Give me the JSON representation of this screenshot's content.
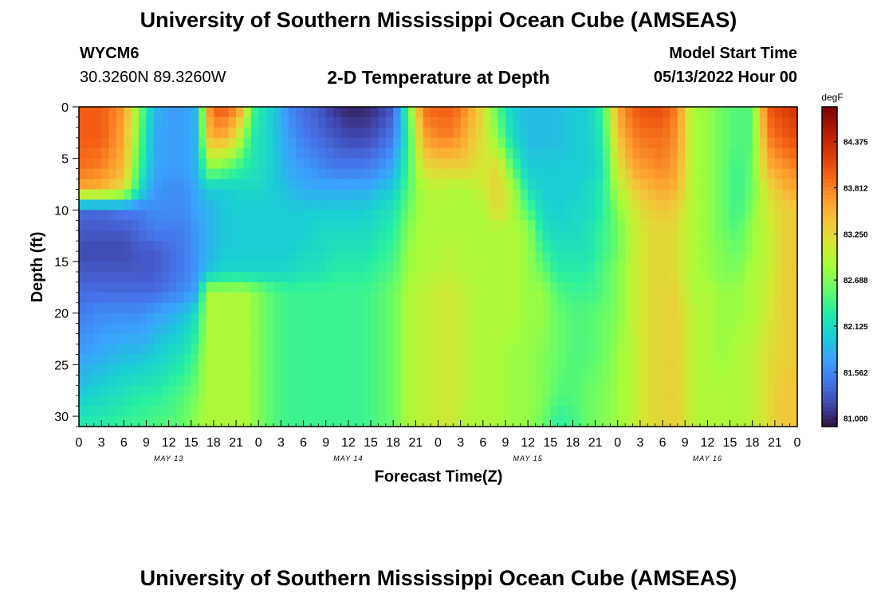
{
  "page": {
    "title": "University of Southern Mississippi Ocean Cube (AMSEAS)",
    "title_repeat": "University of Southern Mississippi Ocean Cube (AMSEAS)",
    "station": "WYCM6",
    "coords": "30.3260N  89.3260W",
    "subtitle": "2-D Temperature at Depth",
    "model_label": "Model Start Time",
    "model_time": "05/13/2022 Hour 00"
  },
  "chart_data": {
    "type": "heatmap",
    "title": "2-D Temperature at Depth",
    "xlabel": "Forecast Time(Z)",
    "ylabel": "Depth (ft)",
    "x_range_hours": [
      0,
      96
    ],
    "x_tick_labels": [
      "0",
      "3",
      "6",
      "9",
      "12",
      "15",
      "18",
      "21",
      "0",
      "3",
      "6",
      "9",
      "12",
      "15",
      "18",
      "21",
      "0",
      "3",
      "6",
      "9",
      "12",
      "15",
      "18",
      "21",
      "0",
      "3",
      "6",
      "9",
      "12",
      "15",
      "18",
      "21",
      "0"
    ],
    "day_labels": [
      "MAY 13",
      "MAY 14",
      "MAY 15",
      "MAY 16"
    ],
    "y_range_ft": [
      0,
      31
    ],
    "y_reversed": true,
    "y_tick_labels": [
      "0",
      "5",
      "10",
      "15",
      "20",
      "25",
      "30"
    ],
    "colorbar": {
      "unit": "degF",
      "min": 80.9,
      "max": 84.8,
      "tick_labels": [
        "84.375",
        "83.812",
        "83.250",
        "82.688",
        "82.125",
        "81.562",
        "81.000"
      ]
    },
    "colormap": [
      "#30123b",
      "#4145ab",
      "#4675ed",
      "#39a2fc",
      "#1bcfd4",
      "#24eca6",
      "#61fc6c",
      "#a4fc3b",
      "#d1e834",
      "#f3c63a",
      "#fe9b2d",
      "#f36315",
      "#d93806",
      "#b11901",
      "#7a0403"
    ],
    "grid": false,
    "legend": "colorbar-right",
    "depths_ft": [
      0,
      3,
      6,
      8,
      10,
      12,
      14,
      16,
      18,
      20,
      24,
      28,
      31
    ],
    "times_h": [
      0,
      3,
      6,
      8,
      10,
      12,
      14,
      16,
      17,
      18,
      20,
      22,
      23,
      24,
      26,
      28,
      30,
      32,
      34,
      36,
      38,
      40,
      42,
      44,
      46,
      48,
      50,
      52,
      54,
      56,
      58,
      60,
      62,
      64,
      66,
      68,
      70,
      72,
      74,
      76,
      78,
      80,
      82,
      84,
      86,
      88,
      90,
      92,
      94,
      96
    ],
    "temperature_columns": [
      [
        84.0,
        84.0,
        83.9,
        83.6,
        81.4,
        81.3,
        81.2,
        81.3,
        81.4,
        81.5,
        81.7,
        82.0,
        82.3
      ],
      [
        84.0,
        84.0,
        83.8,
        83.5,
        81.4,
        81.3,
        81.2,
        81.3,
        81.4,
        81.6,
        81.8,
        82.1,
        82.3
      ],
      [
        83.7,
        83.6,
        83.5,
        83.2,
        81.5,
        81.3,
        81.2,
        81.3,
        81.4,
        81.6,
        81.9,
        82.2,
        82.4
      ],
      [
        82.7,
        82.6,
        82.4,
        82.2,
        81.5,
        81.4,
        81.3,
        81.3,
        81.4,
        81.6,
        81.9,
        82.3,
        82.4
      ],
      [
        81.9,
        81.8,
        81.8,
        81.7,
        81.6,
        81.5,
        81.3,
        81.3,
        81.4,
        81.7,
        82.0,
        82.3,
        82.5
      ],
      [
        81.7,
        81.7,
        81.7,
        81.6,
        81.6,
        81.5,
        81.4,
        81.4,
        81.5,
        81.8,
        82.1,
        82.4,
        82.5
      ],
      [
        81.7,
        81.7,
        81.7,
        81.6,
        81.6,
        81.5,
        81.5,
        81.5,
        81.6,
        81.9,
        82.2,
        82.5,
        82.6
      ],
      [
        81.9,
        81.9,
        81.9,
        81.8,
        81.8,
        81.7,
        81.7,
        81.7,
        81.8,
        82.2,
        82.5,
        82.7,
        82.8
      ],
      [
        83.5,
        83.3,
        82.6,
        82.0,
        81.8,
        81.8,
        81.8,
        81.9,
        82.9,
        82.9,
        82.9,
        82.9,
        82.9
      ],
      [
        84.0,
        83.6,
        82.7,
        82.0,
        81.9,
        81.9,
        81.9,
        82.0,
        82.9,
        82.9,
        82.9,
        82.9,
        82.9
      ],
      [
        84.0,
        83.5,
        82.5,
        82.0,
        82.0,
        82.0,
        82.0,
        82.1,
        82.9,
        82.9,
        82.9,
        82.9,
        82.9
      ],
      [
        83.5,
        82.8,
        82.3,
        82.1,
        82.0,
        82.0,
        82.0,
        82.1,
        82.9,
        82.9,
        82.9,
        82.9,
        82.9
      ],
      [
        82.5,
        82.3,
        82.2,
        82.1,
        82.0,
        82.0,
        82.0,
        82.1,
        82.8,
        82.8,
        82.8,
        82.8,
        82.8
      ],
      [
        82.3,
        82.2,
        82.2,
        82.1,
        82.0,
        82.0,
        82.0,
        82.1,
        82.7,
        82.7,
        82.7,
        82.7,
        82.7
      ],
      [
        82.0,
        82.0,
        82.0,
        82.0,
        82.0,
        82.0,
        82.0,
        82.1,
        82.5,
        82.5,
        82.5,
        82.5,
        82.5
      ],
      [
        81.6,
        81.7,
        81.8,
        81.9,
        82.0,
        82.0,
        82.0,
        82.1,
        82.4,
        82.4,
        82.4,
        82.4,
        82.4
      ],
      [
        81.4,
        81.5,
        81.7,
        81.8,
        82.0,
        82.0,
        82.1,
        82.2,
        82.4,
        82.4,
        82.4,
        82.4,
        82.4
      ],
      [
        81.3,
        81.4,
        81.6,
        81.8,
        82.0,
        82.1,
        82.1,
        82.2,
        82.4,
        82.4,
        82.4,
        82.4,
        82.4
      ],
      [
        81.1,
        81.3,
        81.5,
        81.8,
        82.0,
        82.1,
        82.2,
        82.3,
        82.4,
        82.4,
        82.4,
        82.4,
        82.4
      ],
      [
        81.0,
        81.2,
        81.5,
        81.8,
        82.0,
        82.1,
        82.2,
        82.3,
        82.4,
        82.4,
        82.4,
        82.4,
        82.4
      ],
      [
        81.0,
        81.2,
        81.5,
        81.8,
        82.0,
        82.1,
        82.2,
        82.3,
        82.4,
        82.4,
        82.4,
        82.4,
        82.4
      ],
      [
        81.1,
        81.3,
        81.6,
        81.9,
        82.1,
        82.2,
        82.3,
        82.4,
        82.5,
        82.5,
        82.5,
        82.5,
        82.5
      ],
      [
        81.3,
        81.5,
        81.8,
        82.0,
        82.2,
        82.3,
        82.4,
        82.5,
        82.6,
        82.6,
        82.6,
        82.6,
        82.6
      ],
      [
        82.5,
        82.3,
        82.4,
        82.5,
        82.6,
        82.7,
        82.8,
        82.8,
        82.9,
        82.9,
        82.9,
        82.9,
        82.9
      ],
      [
        83.9,
        83.6,
        83.2,
        82.9,
        82.9,
        82.9,
        82.9,
        82.9,
        83.0,
        83.0,
        83.0,
        83.0,
        83.0
      ],
      [
        84.0,
        83.8,
        83.3,
        83.0,
        82.9,
        82.9,
        82.9,
        83.0,
        83.1,
        83.1,
        83.1,
        83.1,
        83.1
      ],
      [
        84.0,
        83.8,
        83.3,
        82.9,
        82.9,
        82.9,
        83.0,
        83.0,
        83.1,
        83.1,
        83.1,
        83.1,
        83.1
      ],
      [
        83.7,
        83.5,
        83.3,
        82.9,
        82.9,
        82.9,
        82.9,
        82.9,
        83.0,
        83.0,
        83.0,
        83.0,
        82.9
      ],
      [
        83.2,
        83.2,
        83.1,
        83.1,
        82.9,
        82.9,
        82.9,
        82.9,
        82.9,
        82.9,
        82.9,
        82.9,
        82.9
      ],
      [
        82.5,
        82.7,
        83.3,
        83.3,
        83.3,
        82.9,
        82.9,
        82.9,
        82.9,
        82.9,
        82.9,
        82.9,
        82.9
      ],
      [
        82.0,
        82.1,
        82.5,
        82.9,
        82.9,
        82.9,
        82.9,
        82.9,
        82.9,
        82.9,
        82.8,
        82.8,
        82.8
      ],
      [
        81.9,
        81.9,
        82.0,
        82.2,
        82.5,
        82.8,
        82.8,
        82.8,
        82.8,
        82.8,
        82.8,
        82.8,
        82.8
      ],
      [
        81.9,
        81.9,
        82.0,
        82.0,
        82.1,
        82.2,
        82.4,
        82.6,
        82.8,
        82.8,
        82.7,
        82.7,
        82.6
      ],
      [
        81.9,
        81.9,
        82.0,
        82.0,
        82.0,
        82.1,
        82.2,
        82.3,
        82.5,
        82.6,
        82.6,
        82.5,
        82.3
      ],
      [
        82.0,
        82.0,
        82.0,
        82.0,
        82.1,
        82.1,
        82.2,
        82.3,
        82.4,
        82.5,
        82.5,
        82.5,
        82.4
      ],
      [
        82.0,
        82.0,
        82.0,
        82.1,
        82.1,
        82.2,
        82.2,
        82.3,
        82.4,
        82.5,
        82.5,
        82.6,
        82.6
      ],
      [
        82.4,
        82.3,
        82.2,
        82.3,
        82.3,
        82.4,
        82.4,
        82.5,
        82.5,
        82.6,
        82.6,
        82.7,
        82.7
      ],
      [
        83.6,
        83.4,
        83.1,
        82.9,
        82.7,
        82.6,
        82.6,
        82.7,
        82.7,
        82.7,
        82.8,
        82.8,
        82.8
      ],
      [
        84.0,
        83.8,
        83.6,
        83.3,
        83.1,
        83.0,
        83.0,
        83.0,
        83.0,
        83.0,
        83.0,
        83.0,
        83.0
      ],
      [
        84.1,
        83.9,
        83.7,
        83.5,
        83.3,
        83.2,
        83.2,
        83.2,
        83.2,
        83.2,
        83.2,
        83.2,
        83.2
      ],
      [
        84.1,
        83.9,
        83.8,
        83.6,
        83.4,
        83.3,
        83.3,
        83.3,
        83.3,
        83.3,
        83.3,
        83.3,
        83.3
      ],
      [
        83.8,
        83.7,
        83.6,
        83.5,
        83.3,
        83.2,
        83.2,
        83.2,
        83.3,
        83.3,
        83.3,
        83.3,
        83.3
      ],
      [
        82.9,
        82.9,
        82.9,
        82.9,
        82.9,
        82.9,
        82.9,
        82.9,
        82.9,
        83.0,
        83.0,
        83.0,
        83.0
      ],
      [
        82.8,
        82.8,
        82.8,
        82.8,
        82.8,
        82.8,
        82.8,
        82.8,
        82.9,
        82.9,
        82.9,
        82.9,
        82.9
      ],
      [
        82.6,
        82.6,
        82.6,
        82.6,
        82.6,
        82.6,
        82.7,
        82.7,
        82.8,
        82.8,
        82.8,
        82.9,
        82.9
      ],
      [
        82.5,
        82.5,
        82.4,
        82.4,
        82.4,
        82.5,
        82.6,
        82.7,
        82.8,
        82.8,
        82.9,
        82.9,
        82.9
      ],
      [
        82.5,
        82.5,
        82.6,
        82.6,
        82.7,
        82.8,
        82.8,
        82.9,
        82.9,
        82.9,
        83.0,
        83.0,
        83.0
      ],
      [
        84.0,
        83.8,
        83.5,
        83.2,
        83.1,
        83.0,
        83.0,
        83.0,
        83.1,
        83.1,
        83.2,
        83.2,
        83.2
      ],
      [
        84.2,
        84.0,
        83.7,
        83.5,
        83.3,
        83.3,
        83.3,
        83.3,
        83.3,
        83.3,
        83.3,
        83.4,
        83.4
      ],
      [
        84.3,
        84.1,
        83.8,
        83.6,
        83.4,
        83.4,
        83.4,
        83.4,
        83.4,
        83.4,
        83.4,
        83.4,
        83.4
      ]
    ]
  }
}
